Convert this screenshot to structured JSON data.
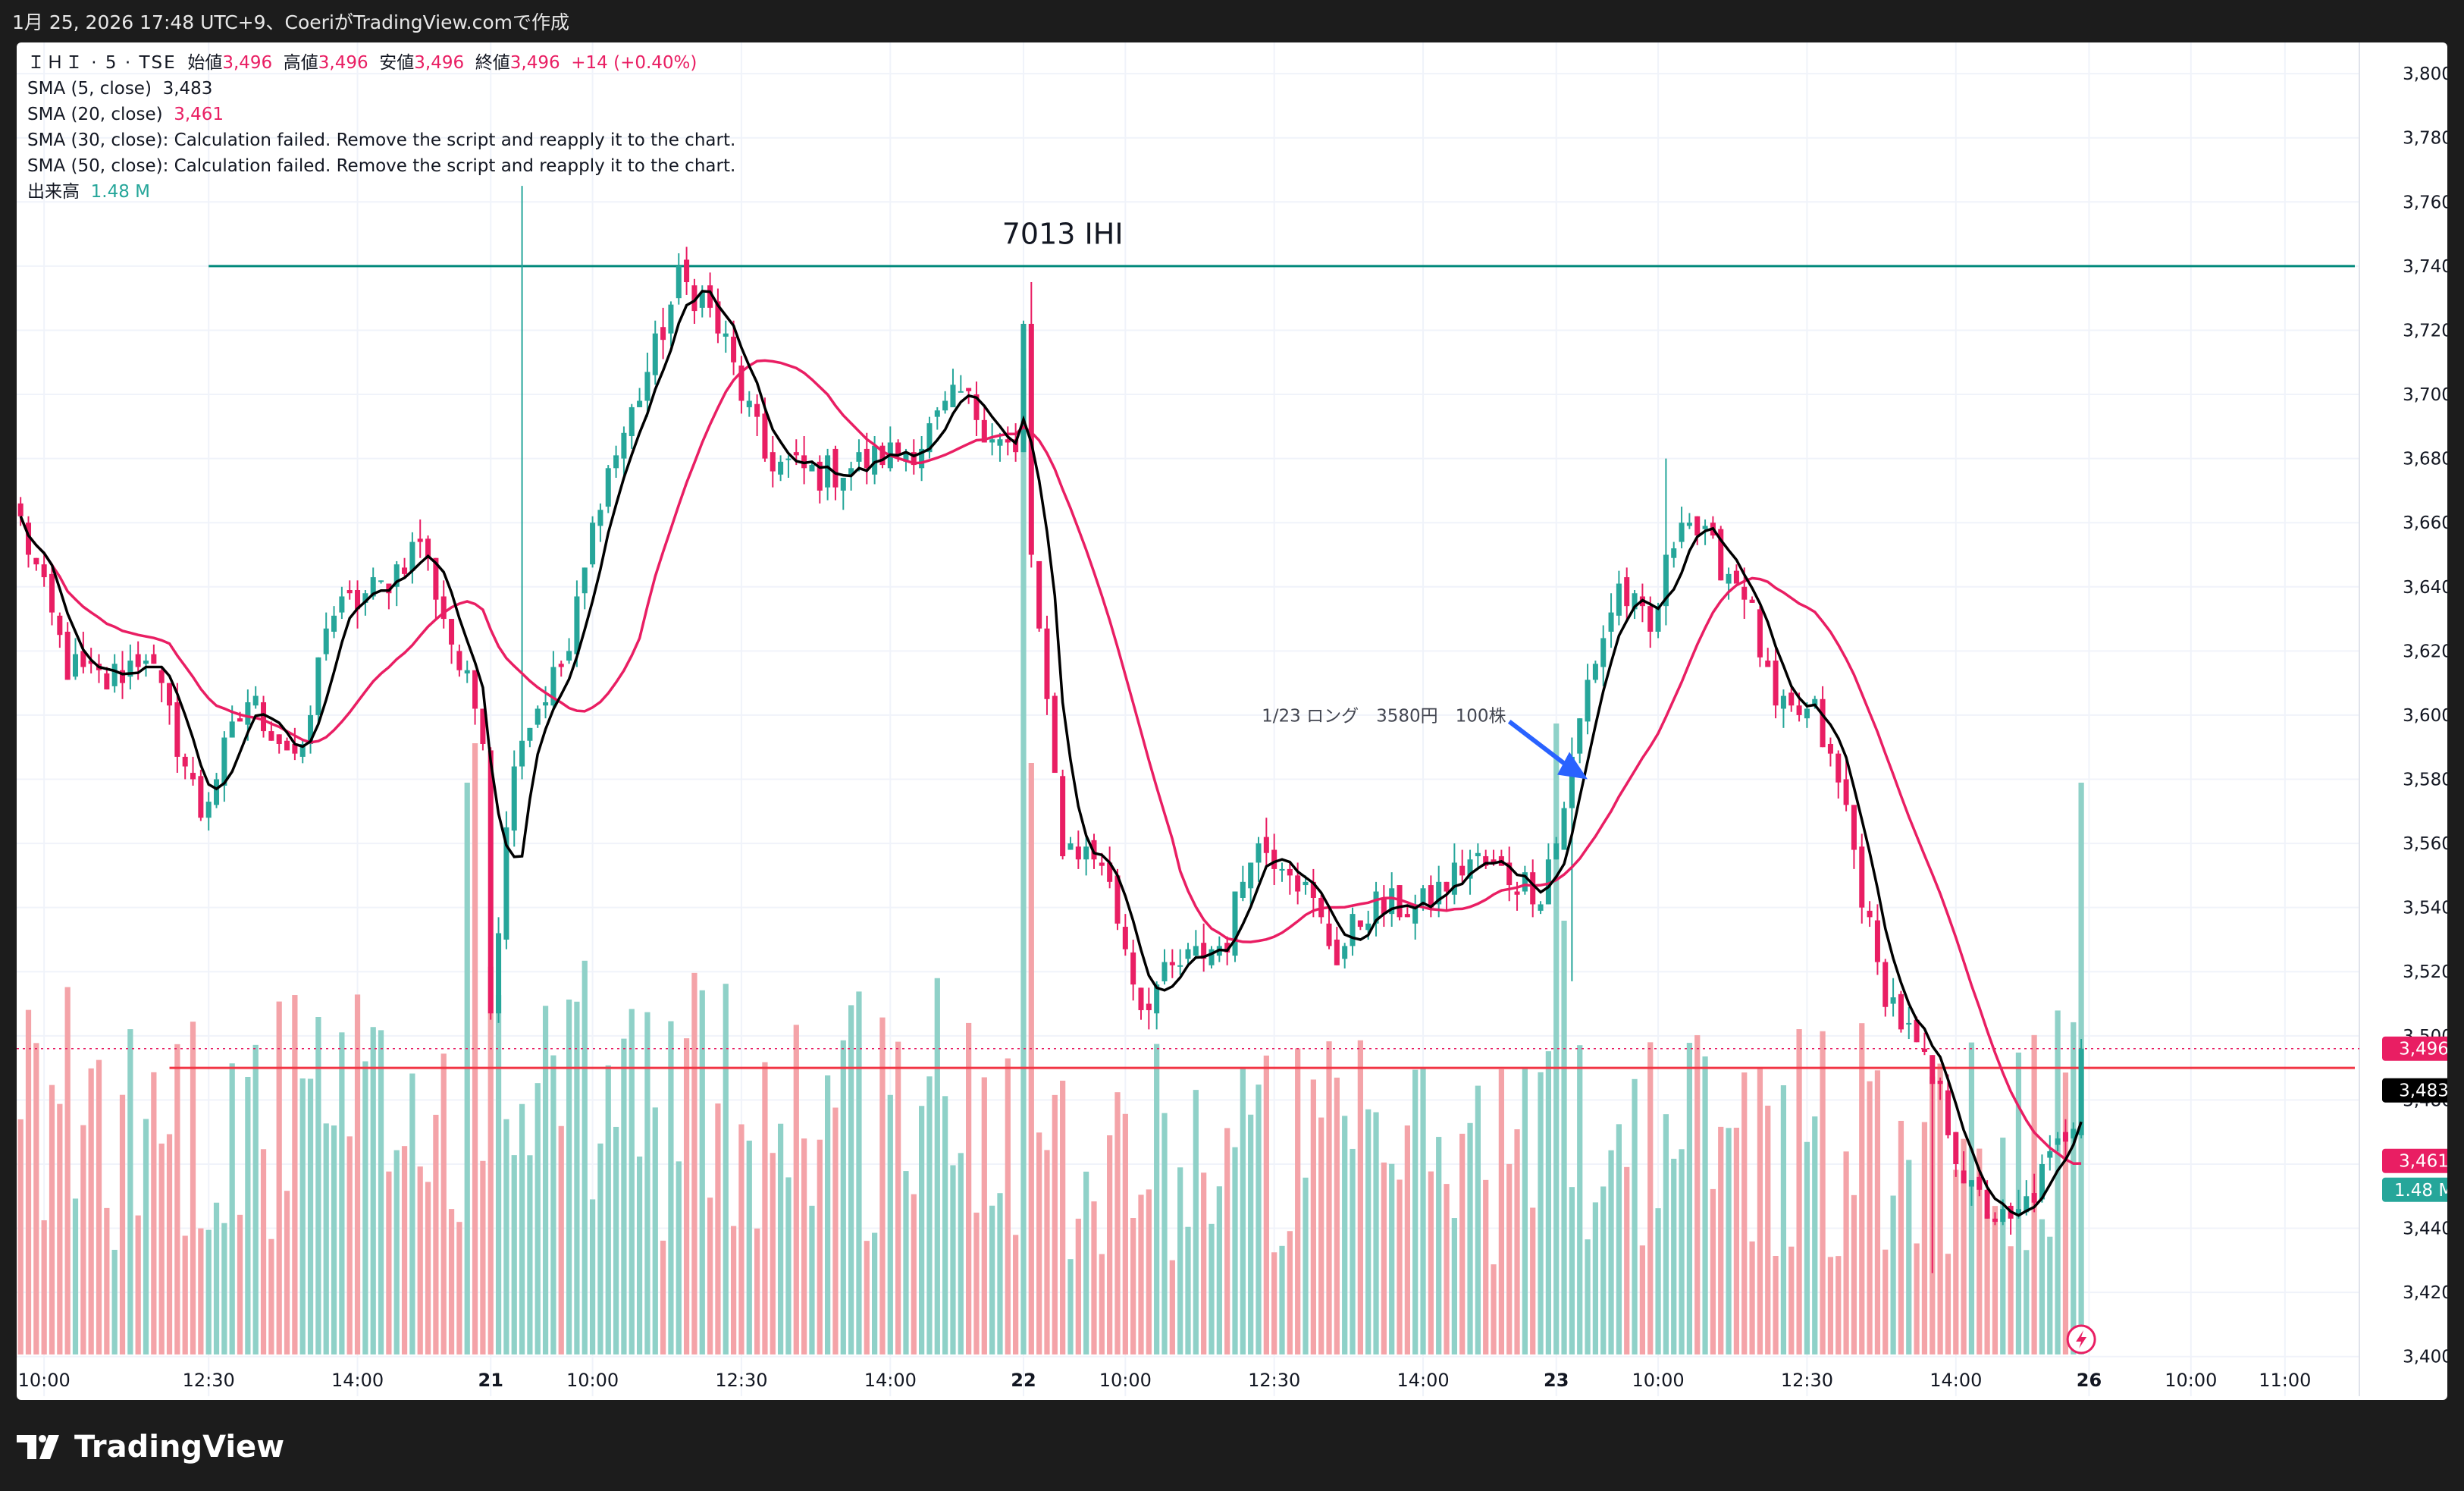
{
  "header": {
    "caption": "1月 25, 2026 17:48 UTC+9、CoeriがTradingView.comで作成"
  },
  "legend": {
    "symbol": "ＩＨＩ · 5 · TSE",
    "open_label": "始値",
    "open": "3,496",
    "high_label": "高値",
    "high": "3,496",
    "low_label": "安値",
    "low": "3,496",
    "close_label": "終値",
    "close": "3,496",
    "change": "+14 (+0.40%)",
    "sma5_label": "SMA (5, close)",
    "sma5_value": "3,483",
    "sma20_label": "SMA (20, close)",
    "sma20_value": "3,461",
    "sma30_label": "SMA (30, close):",
    "sma30_error": "Calculation failed. Remove the script and reapply it to the chart.",
    "sma50_label": "SMA (50, close):",
    "sma50_error": "Calculation failed. Remove the script and reapply it to the chart.",
    "volume_label": "出来高",
    "volume_value": "1.48 M"
  },
  "annotations": {
    "title": "7013 IHI",
    "note": "1/23 ロング　3580円　100株"
  },
  "price_tags": {
    "last": "3,496",
    "sma5": "3,483",
    "sma20": "3,461",
    "volume": "1.48 M"
  },
  "footer": {
    "brand": "TradingView"
  },
  "colors": {
    "up": "#26a69a",
    "down": "#e91e63",
    "up_volume": "#8fd1c8",
    "down_volume": "#f4a3a8",
    "sma5": "#000000",
    "sma20": "#e91e63",
    "resistance": "#00897b",
    "support": "#f23645",
    "arrow": "#2962ff"
  },
  "chart_data": {
    "type": "candlestick",
    "interval": "5",
    "exchange": "TSE",
    "ylim": [
      3390,
      3805
    ],
    "y_ticks": [
      3400,
      3420,
      3440,
      3460,
      3480,
      3500,
      3520,
      3540,
      3560,
      3580,
      3600,
      3620,
      3640,
      3660,
      3680,
      3700,
      3720,
      3740,
      3760,
      3780,
      3800
    ],
    "x_ticks": [
      {
        "label": "10:00",
        "bar": 3
      },
      {
        "label": "12:30",
        "bar": 24
      },
      {
        "label": "14:00",
        "bar": 43
      },
      {
        "label": "21",
        "bar": 60
      },
      {
        "label": "10:00",
        "bar": 73
      },
      {
        "label": "12:30",
        "bar": 92
      },
      {
        "label": "14:00",
        "bar": 111
      },
      {
        "label": "22",
        "bar": 128
      },
      {
        "label": "10:00",
        "bar": 141
      },
      {
        "label": "12:30",
        "bar": 160
      },
      {
        "label": "14:00",
        "bar": 179
      },
      {
        "label": "23",
        "bar": 196
      },
      {
        "label": "10:00",
        "bar": 209
      },
      {
        "label": "12:30",
        "bar": 228
      },
      {
        "label": "14:00",
        "bar": 247
      },
      {
        "label": "26",
        "bar": 264
      },
      {
        "label": "10:00",
        "bar": 277
      },
      {
        "label": "11:00",
        "bar": 289
      }
    ],
    "total_bar_slots": 299,
    "days": [
      {
        "start": 0,
        "n": 60,
        "anchors": [
          [
            0,
            3660
          ],
          [
            6,
            3615
          ],
          [
            11,
            3610
          ],
          [
            16,
            3620
          ],
          [
            23,
            3570
          ],
          [
            29,
            3605
          ],
          [
            36,
            3585
          ],
          [
            39,
            3630
          ],
          [
            46,
            3640
          ],
          [
            51,
            3655
          ],
          [
            56,
            3615
          ],
          [
            60,
            3590
          ]
        ],
        "vol_base": 15
      },
      {
        "start": 60,
        "n": 68,
        "anchors": [
          [
            0,
            3510
          ],
          [
            3,
            3590
          ],
          [
            10,
            3620
          ],
          [
            14,
            3670
          ],
          [
            19,
            3700
          ],
          [
            24,
            3735
          ],
          [
            27,
            3730
          ],
          [
            30,
            3715
          ],
          [
            35,
            3680
          ],
          [
            42,
            3675
          ],
          [
            49,
            3680
          ],
          [
            55,
            3685
          ],
          [
            60,
            3700
          ],
          [
            67,
            3680
          ]
        ],
        "vol_base": 16
      },
      {
        "start": 128,
        "n": 68,
        "anchors": [
          [
            0,
            3720
          ],
          [
            1,
            3650
          ],
          [
            3,
            3600
          ],
          [
            5,
            3560
          ],
          [
            10,
            3555
          ],
          [
            15,
            3510
          ],
          [
            19,
            3520
          ],
          [
            26,
            3530
          ],
          [
            29,
            3560
          ],
          [
            34,
            3555
          ],
          [
            40,
            3525
          ],
          [
            44,
            3540
          ],
          [
            51,
            3540
          ],
          [
            57,
            3555
          ],
          [
            62,
            3550
          ],
          [
            66,
            3545
          ],
          [
            67,
            3555
          ]
        ],
        "vol_base": 13
      },
      {
        "start": 196,
        "n": 68,
        "anchors": [
          [
            0,
            3560
          ],
          [
            4,
            3610
          ],
          [
            8,
            3640
          ],
          [
            12,
            3625
          ],
          [
            16,
            3665
          ],
          [
            20,
            3650
          ],
          [
            24,
            3640
          ],
          [
            28,
            3600
          ],
          [
            33,
            3600
          ],
          [
            37,
            3570
          ],
          [
            41,
            3520
          ],
          [
            45,
            3500
          ],
          [
            49,
            3480
          ],
          [
            53,
            3450
          ],
          [
            58,
            3440
          ],
          [
            63,
            3460
          ],
          [
            67,
            3480
          ]
        ],
        "vol_base": 14
      }
    ],
    "last_close": 3496,
    "high_marks": [
      {
        "bar": 64,
        "value": 3765
      },
      {
        "bar": 129,
        "value": 3735
      },
      {
        "bar": 210,
        "value": 3680
      }
    ],
    "low_marks": [
      {
        "bar": 61,
        "value": 3504
      },
      {
        "bar": 198,
        "value": 3517
      },
      {
        "bar": 244,
        "value": 3426
      }
    ],
    "volume_spikes": [
      {
        "bar": 57,
        "value": 2.9
      },
      {
        "bar": 58,
        "value": 3.1
      },
      {
        "bar": 128,
        "value": 5.0
      },
      {
        "bar": 129,
        "value": 3.0
      },
      {
        "bar": 196,
        "value": 3.2
      },
      {
        "bar": 197,
        "value": 2.2
      },
      {
        "bar": 263,
        "value": 2.9
      }
    ],
    "series": [
      {
        "name": "SMA (5, close)",
        "period": 5
      },
      {
        "name": "SMA (20, close)",
        "period": 20
      }
    ],
    "horizontal_lines": [
      {
        "value": 3740,
        "from_bar": 24,
        "color": "#00897b"
      },
      {
        "value": 3490,
        "from_bar": 19,
        "color": "#f23645"
      }
    ],
    "title_anchor": {
      "bar": 133,
      "value": 3747
    },
    "note_anchor": {
      "bar": 174,
      "value": 3598
    },
    "arrow": {
      "from_bar": 190,
      "from_value": 3598,
      "to_bar": 200,
      "to_value": 3580
    }
  }
}
